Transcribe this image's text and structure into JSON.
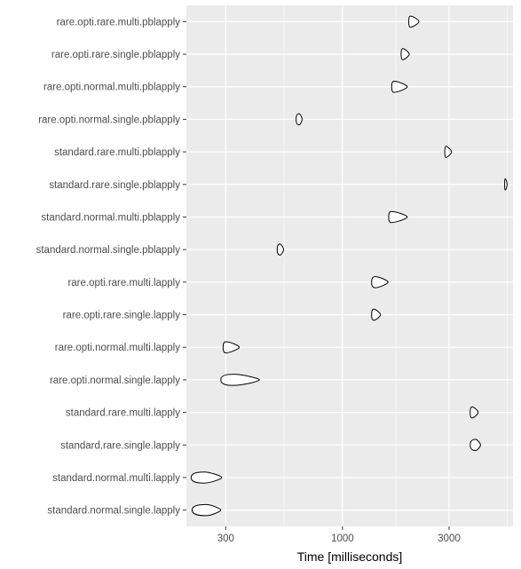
{
  "chart_data": {
    "type": "violin",
    "xlabel": "Time [milliseconds]",
    "ylabel": "",
    "x_scale": "log10",
    "xlim": [
      200,
      5800
    ],
    "x_ticks": [
      300,
      1000,
      3000
    ],
    "x_tick_labels": [
      "300",
      "1000",
      "3000"
    ],
    "grid": true,
    "panel_background": "#ebebeb",
    "grid_color": "#ffffff",
    "violin_fill": "#ffffff",
    "violin_stroke": "#000000",
    "categories": [
      "rare.opti.rare.multi.pblapply",
      "rare.opti.rare.single.pblapply",
      "rare.opti.normal.multi.pblapply",
      "rare.opti.normal.single.pblapply",
      "standard.rare.multi.pblapply",
      "standard.rare.single.pblapply",
      "standard.normal.multi.pblapply",
      "standard.normal.single.pblapply",
      "rare.opti.rare.multi.lapply",
      "rare.opti.rare.single.lapply",
      "rare.opti.normal.multi.lapply",
      "rare.opti.normal.single.lapply",
      "standard.rare.multi.lapply",
      "standard.rare.single.lapply",
      "standard.normal.multi.lapply",
      "standard.normal.single.lapply"
    ],
    "series": [
      {
        "category": "rare.opti.rare.multi.pblapply",
        "min": 1980,
        "peak": 2010,
        "max": 2200
      },
      {
        "category": "rare.opti.rare.single.pblapply",
        "min": 1830,
        "peak": 1860,
        "max": 1990
      },
      {
        "category": "rare.opti.normal.multi.pblapply",
        "min": 1660,
        "peak": 1700,
        "max": 1950
      },
      {
        "category": "rare.opti.normal.single.pblapply",
        "min": 620,
        "peak": 640,
        "max": 660
      },
      {
        "category": "standard.rare.multi.pblapply",
        "min": 2870,
        "peak": 2900,
        "max": 3080
      },
      {
        "category": "standard.rare.single.pblapply",
        "min": 5320,
        "peak": 5360,
        "max": 5460
      },
      {
        "category": "standard.normal.multi.pblapply",
        "min": 1610,
        "peak": 1650,
        "max": 1950
      },
      {
        "category": "standard.normal.single.pblapply",
        "min": 510,
        "peak": 525,
        "max": 545
      },
      {
        "category": "rare.opti.rare.multi.lapply",
        "min": 1350,
        "peak": 1400,
        "max": 1600
      },
      {
        "category": "rare.opti.rare.single.lapply",
        "min": 1350,
        "peak": 1380,
        "max": 1480
      },
      {
        "category": "rare.opti.normal.multi.lapply",
        "min": 292,
        "peak": 300,
        "max": 345
      },
      {
        "category": "rare.opti.normal.single.lapply",
        "min": 285,
        "peak": 325,
        "max": 425
      },
      {
        "category": "standard.rare.multi.lapply",
        "min": 3730,
        "peak": 3800,
        "max": 4050
      },
      {
        "category": "standard.rare.single.lapply",
        "min": 3730,
        "peak": 3950,
        "max": 4150
      },
      {
        "category": "standard.normal.multi.lapply",
        "min": 210,
        "peak": 240,
        "max": 288
      },
      {
        "category": "standard.normal.single.lapply",
        "min": 212,
        "peak": 245,
        "max": 285
      }
    ]
  }
}
